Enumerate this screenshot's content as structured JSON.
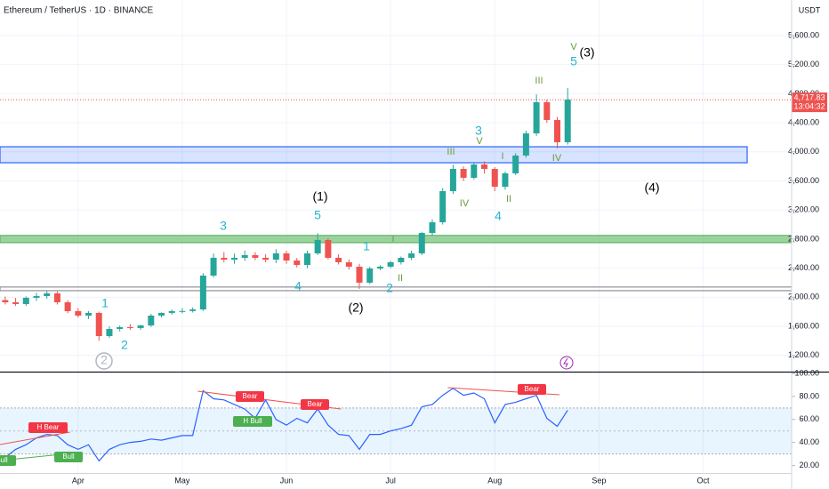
{
  "chart_data": [
    {
      "type": "candlestick",
      "title": "Ethereum / TetherUS · 1D · BINANCE",
      "currency": "USDT",
      "categories": [
        null,
        null,
        null,
        null,
        null,
        null,
        null,
        null,
        null,
        null,
        null,
        null,
        null,
        null,
        null,
        null,
        null,
        null,
        null,
        null,
        null,
        null,
        null,
        null,
        null,
        null,
        null,
        null,
        null,
        null,
        null,
        null,
        null,
        null,
        null,
        null,
        null,
        null,
        null,
        null,
        null,
        null,
        null,
        null,
        null,
        null,
        null,
        null,
        null,
        null,
        null,
        null,
        null,
        null,
        null
      ],
      "open": [
        1960,
        1930,
        1906,
        1992,
        2016,
        2053,
        1930,
        1808,
        1747,
        1784,
        1465,
        1563,
        1588,
        1576,
        1612,
        1747,
        1784,
        1808,
        1810,
        1832,
        2297,
        2542,
        2517,
        2542,
        2579,
        2542,
        2517,
        2603,
        2505,
        2444,
        2603,
        2787,
        2542,
        2481,
        2420,
        2200,
        2395,
        2420,
        2481,
        2542,
        2603,
        2884,
        3031,
        3459,
        3765,
        3643,
        3826,
        3765,
        3520,
        3704,
        3949,
        4254,
        4683,
        4438,
        4132
      ],
      "high": [
        2010,
        1990,
        2010,
        2060,
        2090,
        2080,
        1960,
        1850,
        1810,
        1800,
        1600,
        1610,
        1630,
        1620,
        1770,
        1790,
        1830,
        1850,
        1860,
        2330,
        2600,
        2620,
        2600,
        2640,
        2620,
        2590,
        2660,
        2640,
        2540,
        2640,
        2880,
        2810,
        2590,
        2520,
        2460,
        2420,
        2440,
        2500,
        2560,
        2640,
        2900,
        3070,
        3500,
        3820,
        3800,
        3860,
        3870,
        3790,
        3730,
        3980,
        4290,
        4790,
        4720,
        4480,
        4880
      ],
      "low": [
        1900,
        1880,
        1880,
        1950,
        1980,
        1900,
        1780,
        1720,
        1700,
        1400,
        1440,
        1530,
        1550,
        1550,
        1590,
        1720,
        1760,
        1780,
        1790,
        1810,
        2270,
        2480,
        2460,
        2500,
        2510,
        2480,
        2470,
        2460,
        2410,
        2400,
        2580,
        2520,
        2450,
        2380,
        2114,
        2180,
        2370,
        2400,
        2450,
        2510,
        2580,
        2850,
        3000,
        3420,
        3600,
        3620,
        3700,
        3460,
        3480,
        3680,
        3920,
        4220,
        4400,
        4047,
        4100
      ],
      "close": [
        1930,
        1906,
        1992,
        2016,
        2053,
        1930,
        1808,
        1747,
        1784,
        1465,
        1563,
        1588,
        1576,
        1612,
        1747,
        1784,
        1808,
        1810,
        1832,
        2297,
        2542,
        2517,
        2542,
        2579,
        2542,
        2517,
        2603,
        2505,
        2444,
        2603,
        2787,
        2542,
        2481,
        2420,
        2200,
        2395,
        2420,
        2481,
        2542,
        2603,
        2884,
        3031,
        3459,
        3765,
        3643,
        3826,
        3765,
        3520,
        3704,
        3949,
        4254,
        4683,
        4438,
        4132,
        4717.83
      ],
      "up_color": "#26a69a",
      "down_color": "#ef5350",
      "last_price": {
        "value": 4717.83,
        "label": "4,717.83"
      },
      "countdown": "13:04:32",
      "xlim": [
        -0.5,
        75.5
      ],
      "xticks": [
        {
          "value": 7,
          "label": "Apr"
        },
        {
          "value": 17,
          "label": "May"
        },
        {
          "value": 27,
          "label": "Jun"
        },
        {
          "value": 37,
          "label": "Jul"
        },
        {
          "value": 47,
          "label": "Aug"
        },
        {
          "value": 57,
          "label": "Sep"
        },
        {
          "value": 67,
          "label": "Oct"
        }
      ],
      "ylim": [
        976,
        6089
      ],
      "yticks": [
        {
          "value": 1200,
          "label": "1,200.00"
        },
        {
          "value": 1600,
          "label": "1,600.00"
        },
        {
          "value": 2000,
          "label": "2,000.00"
        },
        {
          "value": 2400,
          "label": "2,400.00"
        },
        {
          "value": 2800,
          "label": "2,800.00"
        },
        {
          "value": 3200,
          "label": "3,200.00"
        },
        {
          "value": 3600,
          "label": "3,600.00"
        },
        {
          "value": 4000,
          "label": "4,000.00"
        },
        {
          "value": 4400,
          "label": "4,400.00"
        },
        {
          "value": 4800,
          "label": "4,800.00"
        },
        {
          "value": 5200,
          "label": "5,200.00"
        },
        {
          "value": 5600,
          "label": "5,600.00"
        }
      ],
      "zones": [
        {
          "low": 3850,
          "high": 4070,
          "color": "#2962ff"
        },
        {
          "low": 2750,
          "high": 2850,
          "color": "#4caf50"
        },
        {
          "low": 2090,
          "high": 2140,
          "color": "#787b86"
        }
      ],
      "annotations": [
        {
          "text": "1",
          "color": "#26b5cf"
        },
        {
          "text": "2",
          "color": "#26b5cf"
        },
        {
          "text": "2",
          "color": "#b2b5be",
          "circled": true
        },
        {
          "text": "3",
          "color": "#26b5cf"
        },
        {
          "text": "(1)",
          "color": "#000000"
        },
        {
          "text": "5",
          "color": "#26b5cf"
        },
        {
          "text": "4",
          "color": "#26b5cf"
        },
        {
          "text": "(2)",
          "color": "#000000"
        },
        {
          "text": "1",
          "color": "#26b5cf"
        },
        {
          "text": "I",
          "color": "#6b9a3c"
        },
        {
          "text": "II",
          "color": "#6b9a3c"
        },
        {
          "text": "2",
          "color": "#26b5cf"
        },
        {
          "text": "III",
          "color": "#6b9a3c"
        },
        {
          "text": "IV",
          "color": "#6b9a3c"
        },
        {
          "text": "3",
          "color": "#26b5cf"
        },
        {
          "text": "V",
          "color": "#6b9a3c"
        },
        {
          "text": "I",
          "color": "#6b9a3c"
        },
        {
          "text": "II",
          "color": "#6b9a3c"
        },
        {
          "text": "4",
          "color": "#26b5cf"
        },
        {
          "text": "III",
          "color": "#6b9a3c"
        },
        {
          "text": "IV",
          "color": "#6b9a3c"
        },
        {
          "text": "V",
          "color": "#6b9a3c"
        },
        {
          "text": "5",
          "color": "#26b5cf"
        },
        {
          "text": "(3)",
          "color": "#000000"
        },
        {
          "text": "(4)",
          "color": "#000000"
        }
      ]
    },
    {
      "type": "line",
      "values": [
        27,
        34,
        38,
        44,
        47,
        46,
        38,
        34,
        38,
        24,
        34,
        38,
        40,
        41,
        43,
        42,
        44,
        46,
        46,
        85,
        78,
        77,
        73,
        69,
        61,
        77,
        60,
        55,
        61,
        57,
        69,
        55,
        47,
        46,
        34,
        47,
        47,
        50,
        52,
        55,
        71,
        73,
        81,
        87,
        81,
        83,
        78,
        57,
        73,
        75,
        78,
        81,
        61,
        54,
        68
      ],
      "color": "#2962ff",
      "band": [
        30,
        70
      ],
      "midline": 50,
      "ylim": [
        15,
        100
      ],
      "yticks": [
        {
          "value": 20,
          "label": "20.00"
        },
        {
          "value": 40,
          "label": "40.00"
        },
        {
          "value": 60,
          "label": "60.00"
        },
        {
          "value": 80,
          "label": "80.00"
        },
        {
          "value": 100,
          "label": "100.00"
        }
      ],
      "signals": [
        {
          "text": "H Bear",
          "color": "#f23645"
        },
        {
          "text": "Bull",
          "color": "#4caf50"
        },
        {
          "text": "Bull",
          "color": "#4caf50"
        },
        {
          "text": "Bear",
          "color": "#f23645"
        },
        {
          "text": "H Bull",
          "color": "#4caf50"
        },
        {
          "text": "Bear",
          "color": "#f23645"
        },
        {
          "text": "Bear",
          "color": "#f23645"
        }
      ]
    }
  ]
}
